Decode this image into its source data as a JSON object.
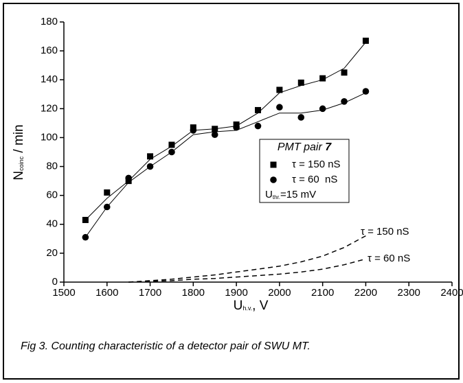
{
  "chart_data": {
    "type": "scatter",
    "x": [
      1550,
      1600,
      1650,
      1700,
      1750,
      1800,
      1850,
      1900,
      1950,
      2000,
      2050,
      2100,
      2150,
      2200
    ],
    "series": [
      {
        "name": "τ = 150 nS",
        "marker": "square",
        "color": "#000000",
        "values": [
          43,
          62,
          70,
          87,
          95,
          107,
          106,
          109,
          119,
          133,
          138,
          141,
          145,
          167
        ]
      },
      {
        "name": "τ = 60  nS",
        "marker": "circle",
        "color": "#000000",
        "values": [
          31,
          52,
          72,
          80,
          90,
          105,
          102,
          107,
          108,
          121,
          114,
          120,
          125,
          132
        ]
      }
    ],
    "fits": [
      {
        "values": [
          43,
          58,
          70,
          85,
          94,
          105,
          106,
          108,
          117,
          131,
          136,
          140,
          148,
          166
        ]
      },
      {
        "values": [
          31,
          52,
          69,
          80,
          90,
          102,
          104,
          105,
          111,
          117,
          117,
          119,
          124,
          131
        ]
      }
    ],
    "dashed": [
      {
        "label": "τ = 150 nS",
        "x": [
          1650,
          1700,
          1750,
          1800,
          1850,
          1900,
          1950,
          2000,
          2050,
          2100,
          2150,
          2200
        ],
        "values": [
          0,
          1,
          2,
          3.5,
          5,
          7,
          9,
          11,
          14,
          18,
          24,
          32
        ]
      },
      {
        "label": "τ = 60  nS",
        "x": [
          1650,
          1700,
          1750,
          1800,
          1850,
          1900,
          1950,
          2000,
          2050,
          2100,
          2150,
          2200
        ],
        "values": [
          0,
          0.5,
          1,
          2,
          2.5,
          3.5,
          4.5,
          5.5,
          7,
          9,
          12,
          16
        ]
      }
    ],
    "xlim": [
      1500,
      2400
    ],
    "xticks": [
      1500,
      1600,
      1700,
      1800,
      1900,
      2000,
      2100,
      2200,
      2300,
      2400
    ],
    "ylim": [
      0,
      180
    ],
    "yticks": [
      0,
      20,
      40,
      60,
      80,
      100,
      120,
      140,
      160,
      180
    ],
    "xlabel": {
      "main": "U",
      "sub": "h.v.",
      "rest": ", V"
    },
    "ylabel": {
      "main": "N",
      "sub": "coinc",
      "rest": " / min"
    },
    "legend_title": {
      "text": "PMT pair ",
      "bold": "7"
    },
    "legend_note": {
      "main": "U",
      "sub": "thr.",
      "rest": "=15 mV"
    },
    "caption": "Fig 3. Counting characteristic of a detector pair of SWU MT."
  }
}
